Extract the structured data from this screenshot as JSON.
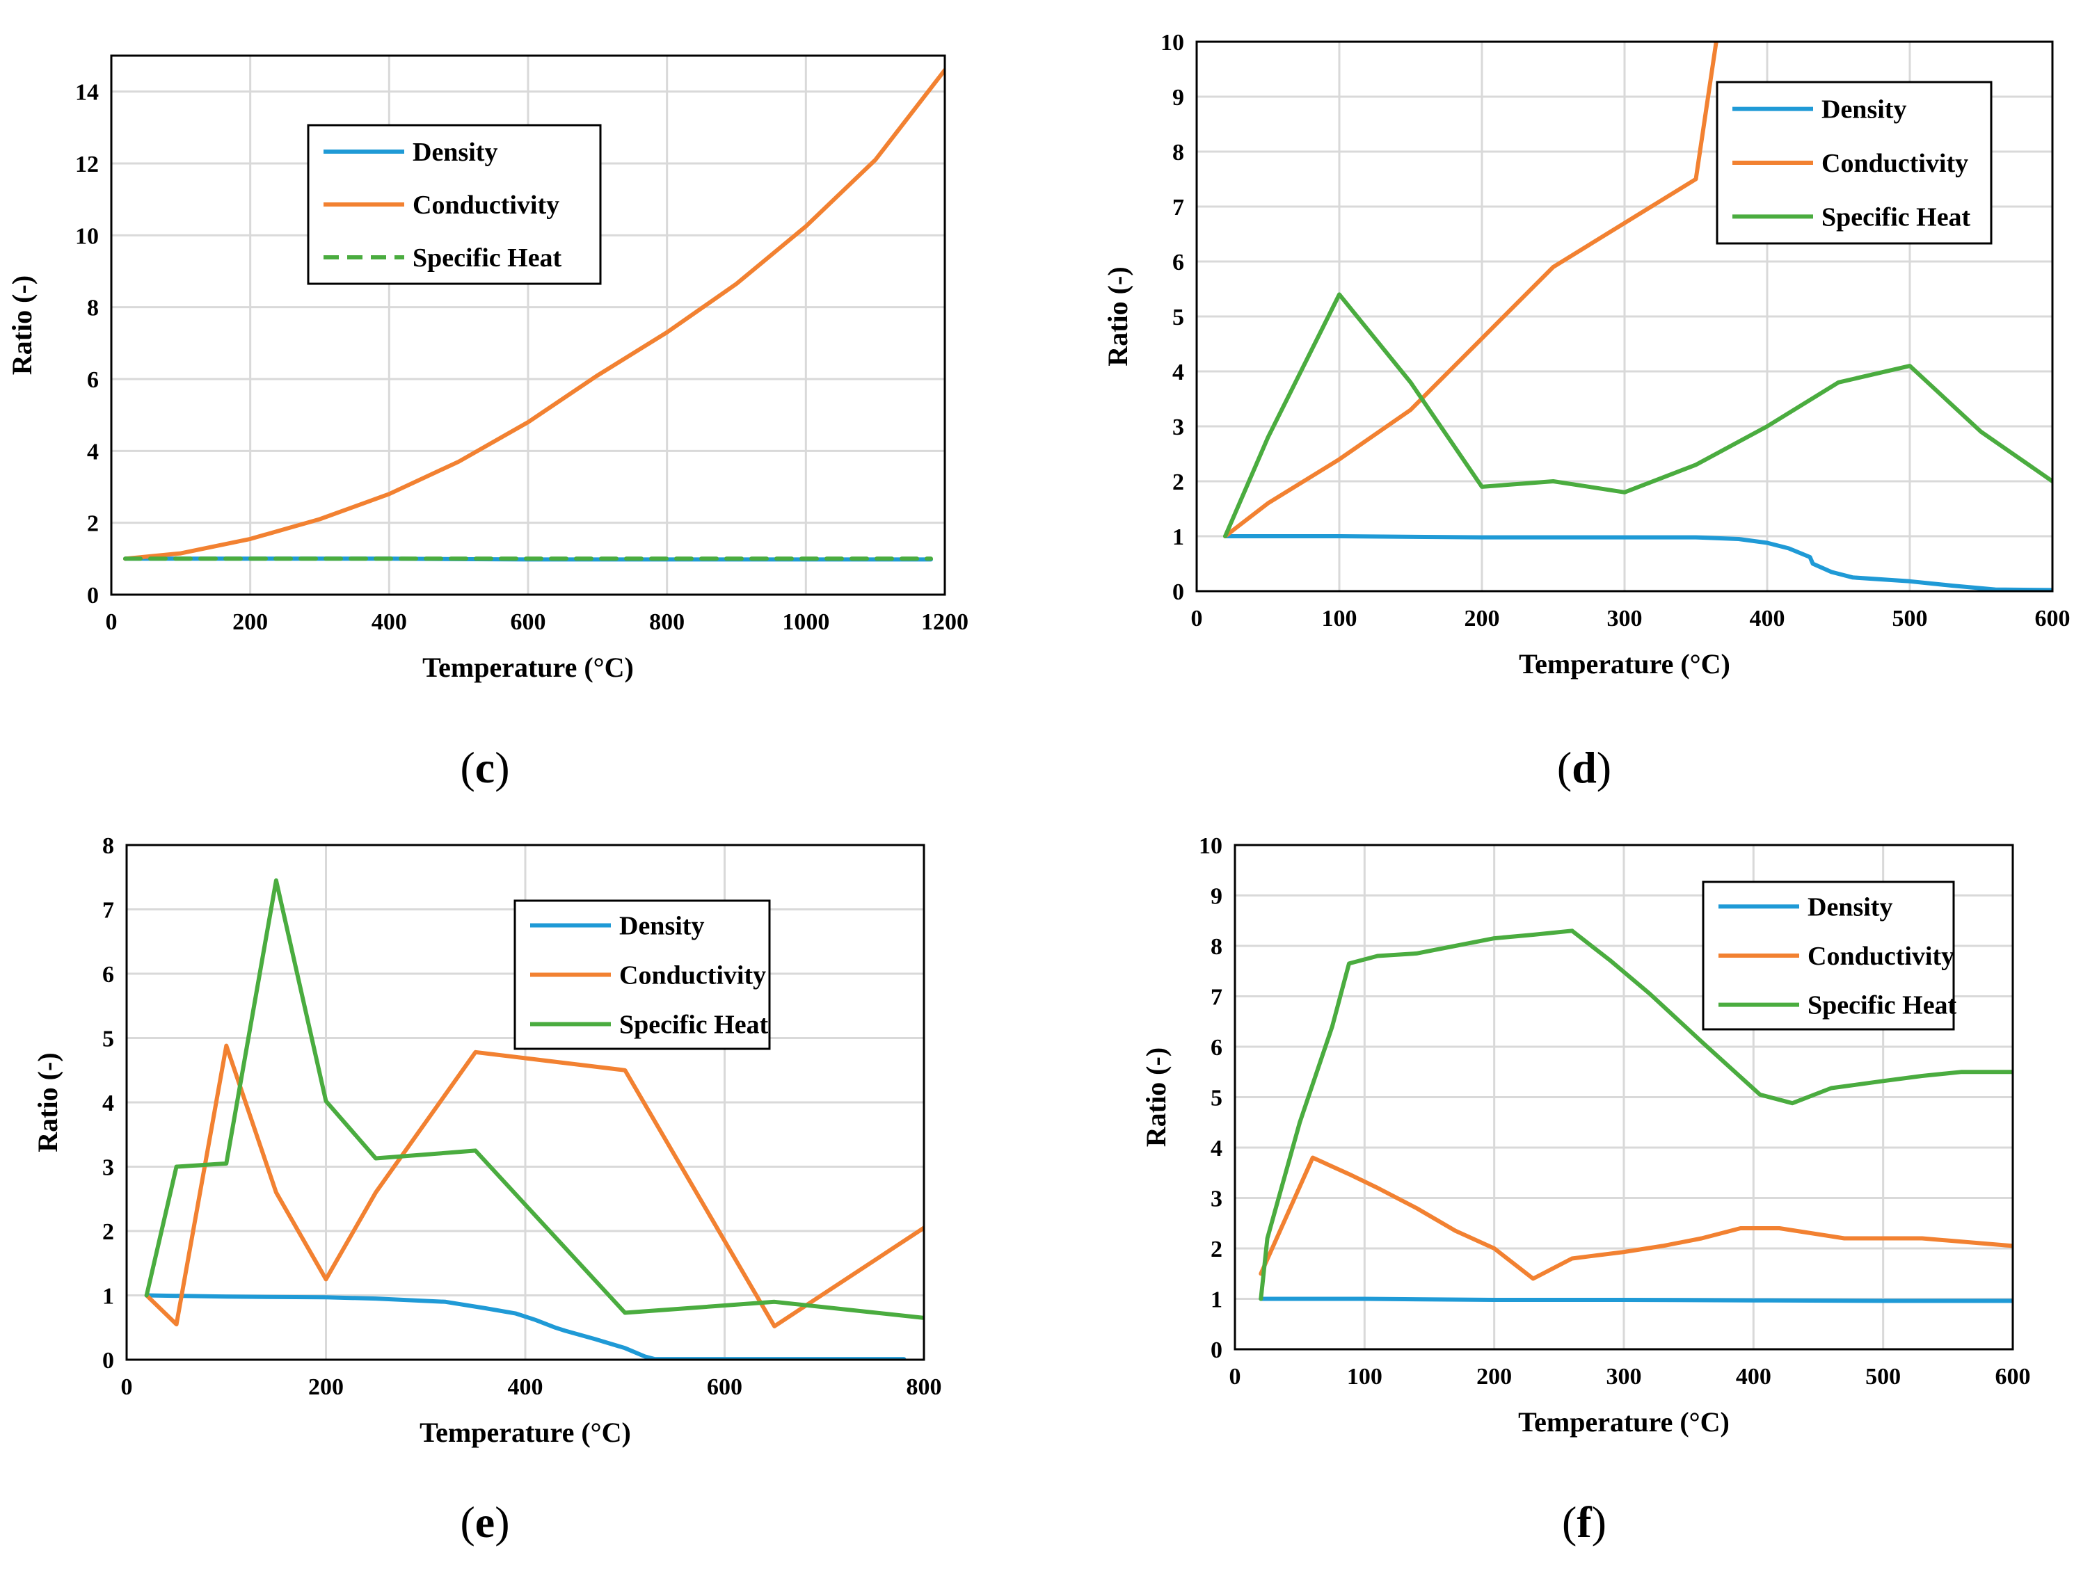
{
  "colors": {
    "density": "#1f9ad6",
    "conductivity": "#f28131",
    "specific_heat": "#4aac3f"
  },
  "chart_data": [
    {
      "id": "c",
      "panel_label": "c",
      "type": "line",
      "xlabel": "Temperature (°C)",
      "ylabel": "Ratio (-)",
      "xlim": [
        0,
        1200
      ],
      "ylim": [
        0,
        15
      ],
      "xticks": [
        0,
        200,
        400,
        600,
        800,
        1000,
        1200
      ],
      "yticks": [
        0,
        2,
        4,
        6,
        8,
        10,
        12,
        14
      ],
      "grid": true,
      "legend_position": "top-center",
      "series": [
        {
          "name": "Density",
          "color": "#1f9ad6",
          "dashed": false,
          "x": [
            20,
            200,
            400,
            600,
            800,
            1000,
            1180
          ],
          "y": [
            1,
            1,
            1,
            0.98,
            0.98,
            0.98,
            0.98
          ]
        },
        {
          "name": "Conductivity",
          "color": "#f28131",
          "dashed": false,
          "x": [
            20,
            100,
            200,
            300,
            400,
            500,
            600,
            700,
            800,
            900,
            1000,
            1100,
            1200
          ],
          "y": [
            1,
            1.15,
            1.55,
            2.1,
            2.8,
            3.7,
            4.8,
            6.1,
            7.3,
            8.65,
            10.25,
            12.1,
            14.6
          ]
        },
        {
          "name": "Specific Heat",
          "color": "#4aac3f",
          "dashed": true,
          "x": [
            20,
            200,
            400,
            600,
            800,
            1000,
            1180
          ],
          "y": [
            1,
            1,
            1,
            1,
            1,
            1,
            1
          ]
        }
      ]
    },
    {
      "id": "d",
      "panel_label": "d",
      "type": "line",
      "xlabel": "Temperature (°C)",
      "ylabel": "Ratio (-)",
      "xlim": [
        0,
        600
      ],
      "ylim": [
        0,
        10
      ],
      "xticks": [
        0,
        100,
        200,
        300,
        400,
        500,
        600
      ],
      "yticks": [
        0,
        1,
        2,
        3,
        4,
        5,
        6,
        7,
        8,
        9,
        10
      ],
      "grid": true,
      "legend_position": "top-right",
      "series": [
        {
          "name": "Density",
          "color": "#1f9ad6",
          "dashed": false,
          "x": [
            20,
            100,
            200,
            300,
            350,
            380,
            400,
            415,
            430,
            432,
            445,
            460,
            500,
            530,
            560,
            600
          ],
          "y": [
            1,
            1,
            0.98,
            0.98,
            0.98,
            0.95,
            0.88,
            0.78,
            0.62,
            0.5,
            0.35,
            0.25,
            0.18,
            0.1,
            0.03,
            0.02
          ]
        },
        {
          "name": "Conductivity",
          "color": "#f28131",
          "dashed": false,
          "x": [
            20,
            50,
            100,
            150,
            200,
            250,
            300,
            350,
            366
          ],
          "y": [
            1,
            1.6,
            2.4,
            3.3,
            4.6,
            5.9,
            6.7,
            7.5,
            10.3
          ]
        },
        {
          "name": "Specific Heat",
          "color": "#4aac3f",
          "dashed": false,
          "x": [
            20,
            50,
            100,
            150,
            200,
            250,
            300,
            350,
            400,
            450,
            500,
            550,
            600
          ],
          "y": [
            1,
            2.8,
            5.4,
            3.8,
            1.9,
            2,
            1.8,
            2.3,
            3,
            3.8,
            4.1,
            2.9,
            2
          ]
        }
      ]
    },
    {
      "id": "e",
      "panel_label": "e",
      "type": "line",
      "xlabel": "Temperature (°C)",
      "ylabel": "Ratio (-)",
      "xlim": [
        0,
        800
      ],
      "ylim": [
        0,
        8
      ],
      "xticks": [
        0,
        200,
        400,
        600,
        800
      ],
      "yticks": [
        0,
        1,
        2,
        3,
        4,
        5,
        6,
        7,
        8
      ],
      "grid": true,
      "legend_position": "top-right",
      "series": [
        {
          "name": "Density",
          "color": "#1f9ad6",
          "dashed": false,
          "x": [
            20,
            100,
            200,
            250,
            320,
            360,
            390,
            410,
            430,
            440,
            470,
            500,
            520,
            530,
            600,
            700,
            780
          ],
          "y": [
            1,
            0.98,
            0.97,
            0.95,
            0.9,
            0.8,
            0.72,
            0.62,
            0.5,
            0.45,
            0.32,
            0.18,
            0.05,
            0.01,
            0.01,
            0.01,
            0.01
          ]
        },
        {
          "name": "Conductivity",
          "color": "#f28131",
          "dashed": false,
          "x": [
            20,
            50,
            100,
            150,
            200,
            250,
            350,
            500,
            650,
            800
          ],
          "y": [
            1,
            0.55,
            4.88,
            2.6,
            1.25,
            2.6,
            4.78,
            4.5,
            0.52,
            2.05
          ]
        },
        {
          "name": "Specific Heat",
          "color": "#4aac3f",
          "dashed": false,
          "x": [
            20,
            50,
            100,
            150,
            200,
            250,
            350,
            500,
            650,
            800
          ],
          "y": [
            1,
            3,
            3.05,
            7.45,
            4.02,
            3.13,
            3.25,
            0.73,
            0.9,
            0.65
          ]
        }
      ]
    },
    {
      "id": "f",
      "panel_label": "f",
      "type": "line",
      "xlabel": "Temperature (°C)",
      "ylabel": "Ratio (-)",
      "xlim": [
        0,
        600
      ],
      "ylim": [
        0,
        10
      ],
      "xticks": [
        0,
        100,
        200,
        300,
        400,
        500,
        600
      ],
      "yticks": [
        0,
        1,
        2,
        3,
        4,
        5,
        6,
        7,
        8,
        9,
        10
      ],
      "grid": true,
      "legend_position": "top-right",
      "series": [
        {
          "name": "Density",
          "color": "#1f9ad6",
          "dashed": false,
          "x": [
            20,
            100,
            200,
            300,
            400,
            500,
            600
          ],
          "y": [
            1,
            1,
            0.98,
            0.98,
            0.97,
            0.96,
            0.96
          ]
        },
        {
          "name": "Conductivity",
          "color": "#f28131",
          "dashed": false,
          "x": [
            20,
            60,
            90,
            110,
            140,
            170,
            200,
            230,
            260,
            300,
            330,
            360,
            390,
            420,
            470,
            530,
            600
          ],
          "y": [
            1.5,
            3.8,
            3.45,
            3.2,
            2.8,
            2.35,
            2,
            1.4,
            1.8,
            1.93,
            2.05,
            2.2,
            2.4,
            2.4,
            2.2,
            2.2,
            2.05
          ]
        },
        {
          "name": "Specific Heat",
          "color": "#4aac3f",
          "dashed": false,
          "x": [
            20,
            25,
            50,
            75,
            88,
            110,
            140,
            170,
            200,
            230,
            260,
            290,
            320,
            360,
            405,
            430,
            460,
            500,
            530,
            560,
            600
          ],
          "y": [
            1,
            2.2,
            4.5,
            6.4,
            7.65,
            7.8,
            7.85,
            8,
            8.15,
            8.22,
            8.3,
            7.7,
            7.05,
            6.1,
            5.05,
            4.88,
            5.18,
            5.32,
            5.42,
            5.5,
            5.5
          ]
        }
      ]
    }
  ]
}
